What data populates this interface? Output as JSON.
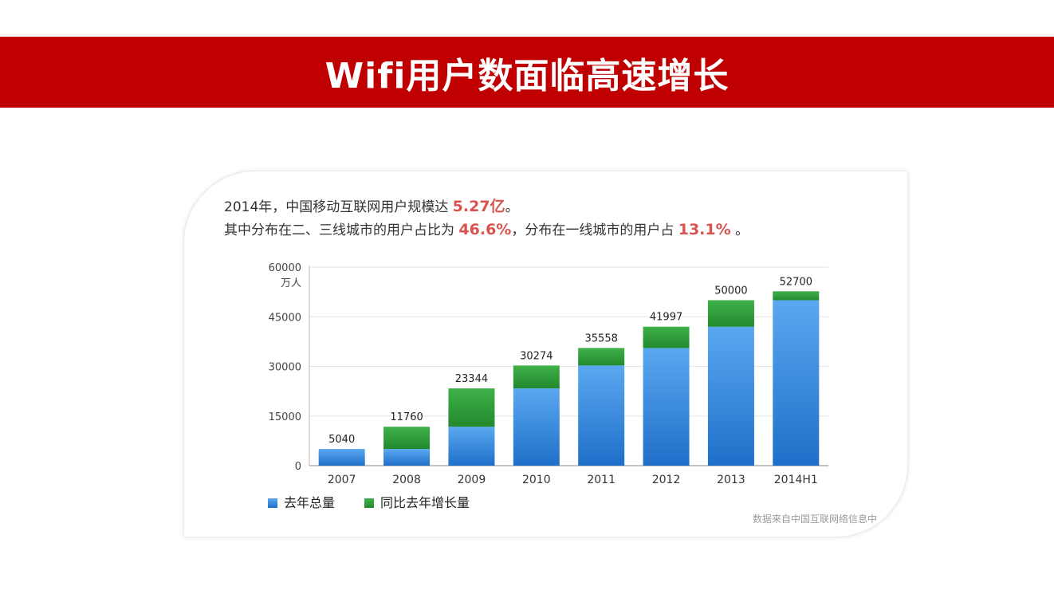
{
  "slide": {
    "title": "Wifi用户数面临高速增长"
  },
  "intro": {
    "line1_text": "2014年，中国移动互联网用户规模达",
    "line1_value": "5.27亿",
    "line1_end": "。",
    "line2_text_a": "其中分布在二、三线城市的用户占比为",
    "line2_value_a": "46.6%",
    "line2_text_b": "，分布在一线城市的用户占",
    "line2_value_b": "13.1%",
    "line2_end": "。"
  },
  "source": "数据来自中国互联网络信息中",
  "colors": {
    "banner": "#c00000",
    "blue": "#3d8fe0",
    "green": "#2e9e3a",
    "highlight": "#d9534f"
  },
  "chart_data": {
    "type": "bar",
    "stacked": true,
    "categories": [
      "2007",
      "2008",
      "2009",
      "2010",
      "2011",
      "2012",
      "2013",
      "2014H1"
    ],
    "series": [
      {
        "name": "去年总量",
        "values": [
          5040,
          5040,
          11760,
          23344,
          30274,
          35558,
          41997,
          50000
        ]
      },
      {
        "name": "同比去年增长量",
        "values": [
          0,
          6720,
          11584,
          6930,
          5284,
          6439,
          8003,
          2700
        ]
      }
    ],
    "totals": [
      "5040",
      "11760",
      "23344",
      "30274",
      "35558",
      "41997",
      "50000",
      "52700"
    ],
    "yticks": [
      "0",
      "15000",
      "30000",
      "45000",
      "60000"
    ],
    "yunit": "万人",
    "ylim": [
      0,
      60000
    ],
    "grid": true,
    "legend": "bottom-left"
  }
}
